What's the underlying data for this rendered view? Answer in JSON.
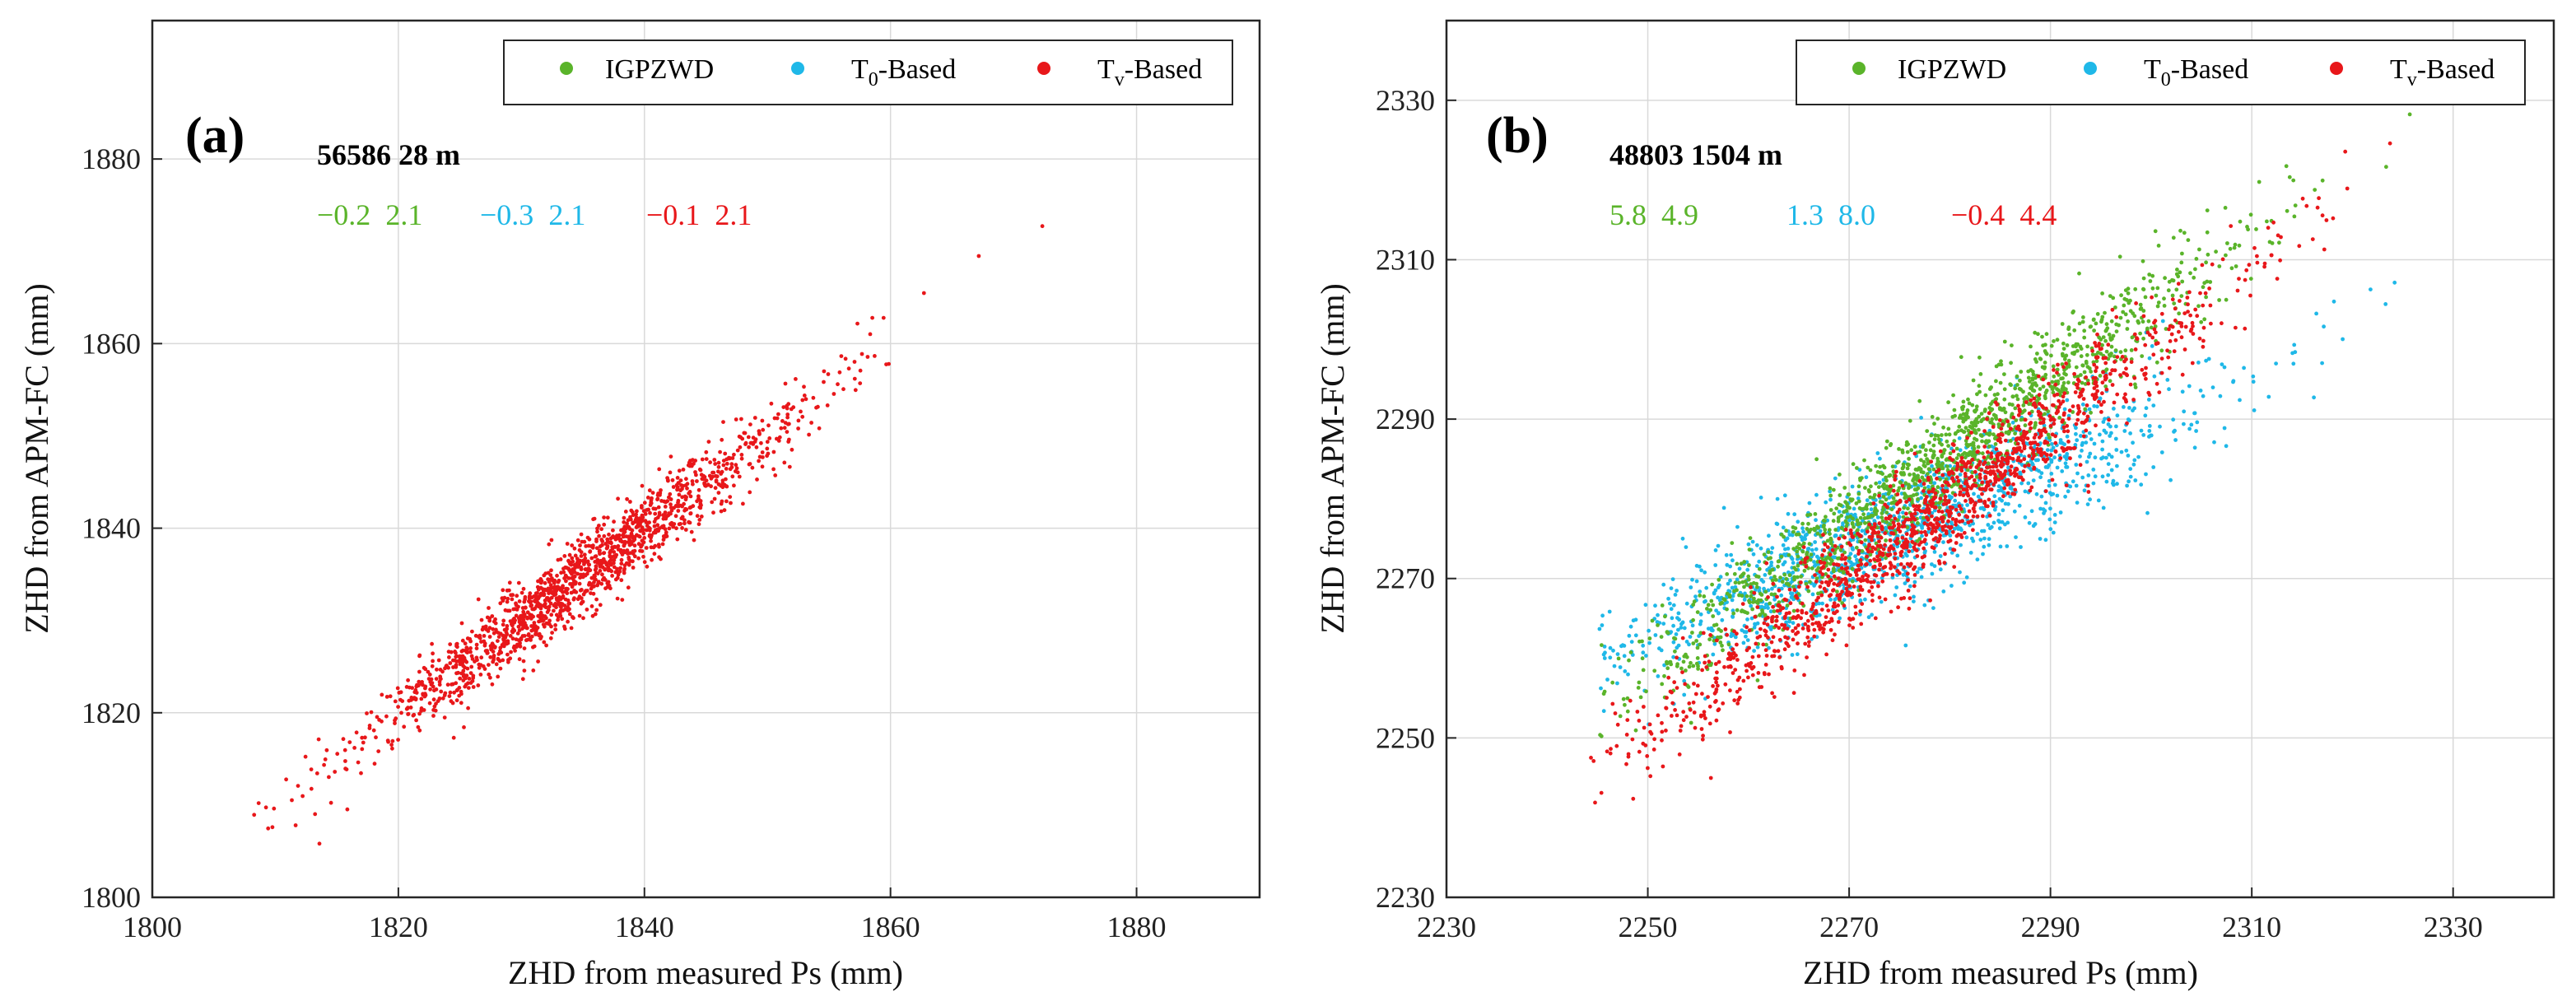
{
  "colors": {
    "igp": "#5ab42a",
    "t0": "#1fb8e8",
    "tv": "#e8171a",
    "grid": "#d9d9d9",
    "axis": "#262626"
  },
  "chart_data": [
    {
      "type": "scatter",
      "panel": "(a)",
      "xlabel": "ZHD from measured Ps (mm)",
      "ylabel": "ZHD from APM-FC (mm)",
      "xlim": [
        1800,
        1890
      ],
      "ylim": [
        1800,
        1895
      ],
      "xticks": [
        1800,
        1820,
        1840,
        1860,
        1880
      ],
      "yticks": [
        1800,
        1820,
        1840,
        1860,
        1880
      ],
      "station": "56586   28 m",
      "legend": {
        "position": "top-right",
        "igp": {
          "name": "IGPZWD"
        },
        "t0": {
          "base": "T",
          "sub": "0",
          "rest": "-Based"
        },
        "tv": {
          "base": "T",
          "sub": "v",
          "rest": "-Based"
        }
      },
      "stats": [
        {
          "series": "IGPZWD",
          "bias": "−0.2",
          "rms": "2.1"
        },
        {
          "series": "T0-Based",
          "bias": "−0.3",
          "rms": "2.1"
        },
        {
          "series": "Tv-Based",
          "bias": "−0.1",
          "rms": "2.1"
        }
      ],
      "series": [
        {
          "name": "IGPZWD",
          "key": "igp",
          "offset": -0.2,
          "slope": 1.0,
          "spread": 2.1,
          "count": 0,
          "x_range": [
            1808,
            1878
          ],
          "x_center": 1835,
          "x_std": 9
        },
        {
          "name": "T0-Based",
          "key": "t0",
          "offset": -0.3,
          "slope": 1.0,
          "spread": 2.1,
          "count": 0,
          "x_range": [
            1808,
            1878
          ],
          "x_center": 1835,
          "x_std": 9
        },
        {
          "name": "Tv-Based",
          "key": "tv",
          "offset": -0.1,
          "slope": 1.0,
          "spread": 2.1,
          "count": 1500,
          "x_range": [
            1808,
            1878
          ],
          "x_center": 1835,
          "x_std": 9
        }
      ]
    },
    {
      "type": "scatter",
      "panel": "(b)",
      "xlabel": "ZHD from measured Ps (mm)",
      "ylabel": "ZHD from APM-FC (mm)",
      "xlim": [
        2230,
        2340
      ],
      "ylim": [
        2230,
        2340
      ],
      "xticks": [
        2230,
        2250,
        2270,
        2290,
        2310,
        2330
      ],
      "yticks": [
        2230,
        2250,
        2270,
        2290,
        2310,
        2330
      ],
      "station": "48803 1504 m",
      "legend": {
        "position": "top-right",
        "igp": {
          "name": "IGPZWD"
        },
        "t0": {
          "base": "T",
          "sub": "0",
          "rest": "-Based"
        },
        "tv": {
          "base": "T",
          "sub": "v",
          "rest": "-Based"
        }
      },
      "stats": [
        {
          "series": "IGPZWD",
          "bias": "5.8",
          "rms": "4.9"
        },
        {
          "series": "T0-Based",
          "bias": "1.3",
          "rms": "8.0"
        },
        {
          "series": "Tv-Based",
          "bias": "−0.4",
          "rms": "4.4"
        }
      ],
      "series": [
        {
          "name": "T0-Based",
          "key": "t0",
          "offset": 1.3,
          "slope": 0.55,
          "spread": 4.0,
          "count": 1400,
          "x_range": [
            2245,
            2332
          ],
          "x_center": 2275,
          "x_std": 15
        },
        {
          "name": "IGPZWD",
          "key": "igp",
          "offset": 5.8,
          "slope": 0.92,
          "spread": 3.4,
          "count": 1400,
          "x_range": [
            2245,
            2330
          ],
          "x_center": 2278,
          "x_std": 15
        },
        {
          "name": "Tv-Based",
          "key": "tv",
          "offset": -0.4,
          "slope": 0.95,
          "spread": 3.2,
          "count": 1400,
          "x_range": [
            2244,
            2330
          ],
          "x_center": 2278,
          "x_std": 15
        }
      ]
    }
  ]
}
